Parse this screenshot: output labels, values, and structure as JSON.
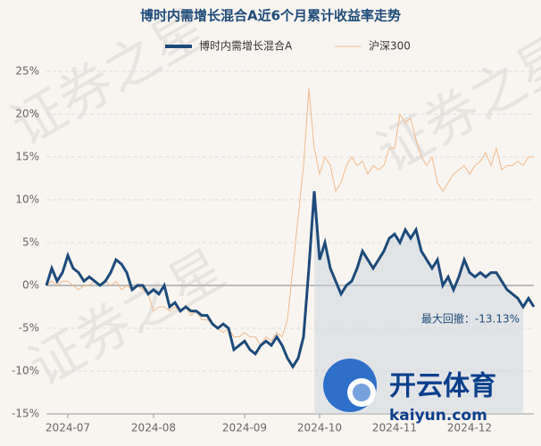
{
  "chart_data": {
    "type": "line",
    "title": "博时内需增长混合A近6个月累计收益率走势",
    "categories": [
      null,
      null,
      null,
      null,
      "2024-07",
      null,
      null,
      null,
      null,
      null,
      null,
      null,
      null,
      null,
      null,
      null,
      null,
      null,
      null,
      null,
      "2024-08",
      null,
      null,
      null,
      null,
      null,
      null,
      null,
      null,
      null,
      null,
      null,
      null,
      null,
      null,
      null,
      null,
      "2024-09",
      null,
      null,
      null,
      null,
      null,
      null,
      null,
      null,
      null,
      null,
      null,
      null,
      null,
      "2024-10",
      null,
      null,
      null,
      null,
      null,
      null,
      null,
      null,
      null,
      null,
      null,
      null,
      null,
      "2024-11",
      null,
      null,
      null,
      null,
      null,
      null,
      null,
      null,
      null,
      null,
      null,
      null,
      null,
      "2024-12",
      null,
      null,
      null,
      null,
      null,
      null,
      null,
      null,
      null,
      null,
      null,
      null
    ],
    "series": [
      {
        "name": "博时内需增长混合A",
        "color": "#1d4a7a",
        "values": [
          0,
          2,
          0.5,
          1.5,
          3.5,
          2,
          1.5,
          0.5,
          1,
          0.5,
          0,
          0.5,
          1.5,
          3,
          2.5,
          1.5,
          -0.5,
          0,
          0,
          -1,
          -0.5,
          -1,
          0,
          -2.5,
          -2,
          -3,
          -2.5,
          -3,
          -3,
          -3.5,
          -3.5,
          -4.5,
          -5,
          -4.5,
          -5,
          -7.5,
          -7,
          -6.5,
          -7.5,
          -8,
          -7,
          -6.5,
          -7,
          -6,
          -7,
          -8.5,
          -9.5,
          -8.5,
          -6,
          2,
          11,
          3,
          5,
          2,
          0.5,
          -1,
          0,
          0.5,
          2,
          4,
          3,
          2,
          3,
          4,
          5.5,
          6,
          5,
          6.5,
          5.5,
          6.5,
          4,
          3,
          2,
          3,
          0,
          1,
          -0.5,
          1,
          3,
          1.5,
          1,
          1.5,
          1,
          1.5,
          1.5,
          0.5,
          -0.5,
          -1,
          -1.5,
          -2.5,
          -1.5,
          -2.5
        ]
      },
      {
        "name": "沪深300",
        "color": "#f0b98a",
        "values": [
          0,
          0.5,
          0,
          0.5,
          0.5,
          0,
          -0.5,
          0,
          0,
          0.5,
          0,
          0.5,
          0,
          0.5,
          -0.5,
          0,
          -0.5,
          0,
          -0.5,
          -1,
          -3,
          -2.5,
          -2.5,
          -3,
          -2.5,
          -3,
          -2.5,
          -3.5,
          -3,
          -4,
          -4,
          -4.5,
          -5,
          -5.5,
          -5,
          -6,
          -6,
          -5.5,
          -6,
          -6,
          -7,
          -6,
          -6.5,
          -5.5,
          -6,
          -4,
          2,
          8,
          14,
          23,
          16,
          13,
          15,
          14,
          11,
          12,
          14,
          15,
          14,
          14.5,
          13,
          14,
          13.5,
          14,
          16,
          16,
          20,
          19,
          19.5,
          17,
          15,
          14,
          15,
          12,
          11,
          12,
          13,
          13.5,
          14,
          13,
          14,
          14.5,
          15.5,
          14,
          16,
          13.5,
          14,
          14,
          14.5,
          14,
          15,
          15
        ]
      }
    ],
    "ylim": [
      -15,
      25
    ],
    "yticks": [
      {
        "value": -15,
        "label": "-15%"
      },
      {
        "value": -10,
        "label": "-10%"
      },
      {
        "value": -5,
        "label": "-5%"
      },
      {
        "value": 0,
        "label": "0%"
      },
      {
        "value": 5,
        "label": "5%"
      },
      {
        "value": 10,
        "label": "10%"
      },
      {
        "value": 15,
        "label": "15%"
      },
      {
        "value": 20,
        "label": "20%"
      },
      {
        "value": 25,
        "label": "25%"
      }
    ],
    "grid": true,
    "annotation": "最大回撤：-13.13%",
    "watermark": "证券之星",
    "logo_text": "开云体育",
    "logo_url": "kaiyun.com"
  }
}
